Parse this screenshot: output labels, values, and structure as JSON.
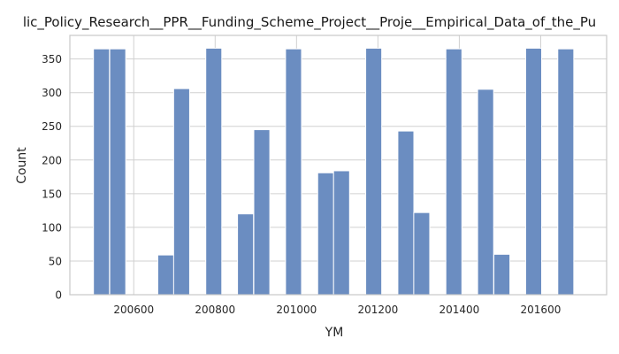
{
  "chart_data": {
    "type": "bar",
    "title": "lic_Policy_Research__PPR__Funding_Scheme_Project__Proje__Empirical_Data_of_the_Pu",
    "xlabel": "YM",
    "ylabel": "Count",
    "xlim": [
      200443,
      201762
    ],
    "ylim": [
      0,
      385
    ],
    "x_ticks": [
      200600,
      200800,
      201000,
      201200,
      201400,
      201600
    ],
    "y_ticks": [
      0,
      50,
      100,
      150,
      200,
      250,
      300,
      350
    ],
    "grid": true,
    "bar_width": 39.3,
    "bars": [
      {
        "x": 200501,
        "value": 365
      },
      {
        "x": 200541,
        "value": 365
      },
      {
        "x": 200580,
        "value": 0
      },
      {
        "x": 200619,
        "value": 0
      },
      {
        "x": 200659,
        "value": 59
      },
      {
        "x": 200698,
        "value": 306
      },
      {
        "x": 200737,
        "value": 0
      },
      {
        "x": 200777,
        "value": 366
      },
      {
        "x": 200816,
        "value": 0
      },
      {
        "x": 200855,
        "value": 120
      },
      {
        "x": 200895,
        "value": 245
      },
      {
        "x": 200934,
        "value": 0
      },
      {
        "x": 200973,
        "value": 365
      },
      {
        "x": 201013,
        "value": 0
      },
      {
        "x": 201052,
        "value": 181
      },
      {
        "x": 201091,
        "value": 184
      },
      {
        "x": 201131,
        "value": 0
      },
      {
        "x": 201170,
        "value": 366
      },
      {
        "x": 201209,
        "value": 0
      },
      {
        "x": 201249,
        "value": 243
      },
      {
        "x": 201288,
        "value": 122
      },
      {
        "x": 201327,
        "value": 0
      },
      {
        "x": 201367,
        "value": 365
      },
      {
        "x": 201406,
        "value": 0
      },
      {
        "x": 201445,
        "value": 305
      },
      {
        "x": 201485,
        "value": 60
      },
      {
        "x": 201524,
        "value": 0
      },
      {
        "x": 201563,
        "value": 366
      },
      {
        "x": 201603,
        "value": 0
      },
      {
        "x": 201642,
        "value": 365
      }
    ],
    "colors": {
      "bar": "#6b8dc1",
      "bar_edge": "#ffffff",
      "grid": "#d0d0d0",
      "axis": "#c8c8c8"
    }
  }
}
